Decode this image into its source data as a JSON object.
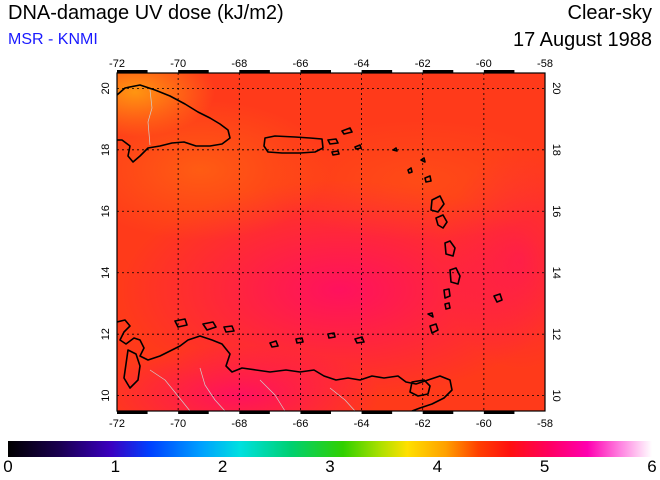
{
  "header": {
    "title": "DNA-damage UV dose (kJ/m2)",
    "source": "MSR - KNMI",
    "sky_condition": "Clear-sky",
    "date": "17 August 1988"
  },
  "map": {
    "lon_range": [
      -72,
      -58
    ],
    "lat_range": [
      9.5,
      20.5
    ],
    "lon_ticks": [
      "-72",
      "-70",
      "-68",
      "-66",
      "-64",
      "-62",
      "-60",
      "-58"
    ],
    "lat_ticks": [
      "10",
      "12",
      "14",
      "16",
      "18",
      "20"
    ],
    "grid": true,
    "field_colors": {
      "base": "#ff3a1a",
      "high_dose": "#ff1060",
      "low_dose": "#ff8c10"
    }
  },
  "colorbar": {
    "min": 0,
    "max": 6,
    "labels": [
      "0",
      "1",
      "2",
      "3",
      "4",
      "5",
      "6"
    ]
  }
}
